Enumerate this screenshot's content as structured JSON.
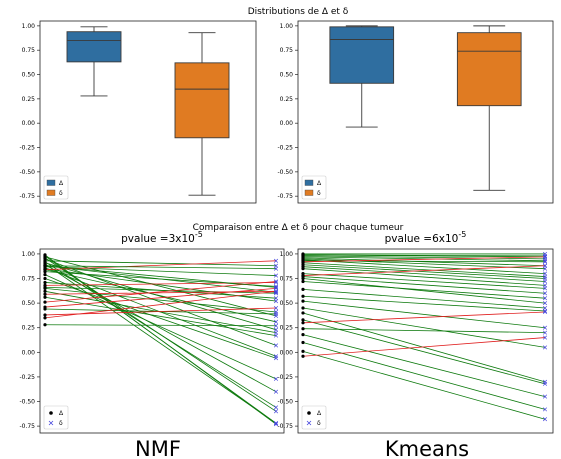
{
  "figure": {
    "suptitle_top": "Distributions de Δ et δ",
    "suptitle_bottom": "Comparaison entre Δ et δ pour chaque tumeur",
    "bottom_left_caption": "NMF",
    "bottom_right_caption": "Kmeans"
  },
  "colors": {
    "delta_box": "#2f6ea0",
    "delta_small_box": "#e07b22",
    "increase_line": "#e02020",
    "decrease_line": "#0e7a0e",
    "delta_marker": "#000000",
    "delta_small_marker": "#4444dd"
  },
  "chart_data": [
    {
      "type": "box",
      "title": "",
      "categories": [
        "Δ",
        "δ"
      ],
      "ylim": [
        -0.82,
        1.05
      ],
      "yticks": [
        "1.00",
        "0.75",
        "0.50",
        "0.25",
        "0.00",
        "-0.25",
        "-0.50",
        "-0.75"
      ],
      "series": [
        {
          "name": "Δ",
          "whisker_low": 0.28,
          "q1": 0.63,
          "median": 0.85,
          "q3": 0.94,
          "whisker_high": 0.99
        },
        {
          "name": "δ",
          "whisker_low": -0.74,
          "q1": -0.15,
          "median": 0.35,
          "q3": 0.62,
          "whisker_high": 0.93
        }
      ],
      "legend": {
        "position": "bottom-left",
        "entries": [
          "Δ",
          "δ"
        ]
      }
    },
    {
      "type": "box",
      "title": "",
      "categories": [
        "Δ",
        "δ"
      ],
      "ylim": [
        -0.82,
        1.05
      ],
      "yticks": [
        "1.00",
        "0.75",
        "0.50",
        "0.25",
        "0.00",
        "-0.25",
        "-0.50",
        "-0.75"
      ],
      "series": [
        {
          "name": "Δ",
          "whisker_low": -0.04,
          "q1": 0.41,
          "median": 0.86,
          "q3": 0.99,
          "whisker_high": 1.0
        },
        {
          "name": "δ",
          "whisker_low": -0.69,
          "q1": 0.18,
          "median": 0.74,
          "q3": 0.93,
          "whisker_high": 1.0
        }
      ],
      "legend": {
        "position": "bottom-left",
        "entries": [
          "Δ",
          "δ"
        ]
      }
    },
    {
      "type": "line",
      "title_prefix": "pvalue =3x10",
      "title_exponent": "-5",
      "ylim": [
        -0.82,
        1.05
      ],
      "yticks": [
        "1.00",
        "0.75",
        "0.50",
        "0.25",
        "0.00",
        "-0.25",
        "-0.50",
        "-0.75"
      ],
      "legend": {
        "position": "bottom-left",
        "entries": [
          "Δ",
          "δ"
        ]
      },
      "pairs": [
        [
          0.99,
          -0.73
        ],
        [
          0.98,
          -0.72
        ],
        [
          0.97,
          0.37
        ],
        [
          0.96,
          -0.6
        ],
        [
          0.95,
          0.07
        ],
        [
          0.93,
          0.88
        ],
        [
          0.92,
          -0.56
        ],
        [
          0.91,
          0.23
        ],
        [
          0.9,
          -0.72
        ],
        [
          0.89,
          -0.4
        ],
        [
          0.88,
          0.61
        ],
        [
          0.87,
          0.78
        ],
        [
          0.86,
          -0.04
        ],
        [
          0.85,
          0.52
        ],
        [
          0.84,
          0.31
        ],
        [
          0.82,
          0.67
        ],
        [
          0.79,
          -0.27
        ],
        [
          0.75,
          -0.06
        ],
        [
          0.71,
          0.55
        ],
        [
          0.68,
          0.71
        ],
        [
          0.66,
          0.6
        ],
        [
          0.65,
          0.41
        ],
        [
          0.62,
          0.2
        ],
        [
          0.59,
          0.62
        ],
        [
          0.56,
          0.17
        ],
        [
          0.51,
          0.72
        ],
        [
          0.46,
          0.65
        ],
        [
          0.44,
          0.39
        ],
        [
          0.38,
          0.45
        ],
        [
          0.35,
          0.62
        ],
        [
          0.28,
          0.27
        ],
        [
          0.84,
          0.93
        ],
        [
          0.88,
          0.66
        ],
        [
          0.88,
          0.85
        ]
      ]
    },
    {
      "type": "line",
      "title_prefix": "pvalue =6x10",
      "title_exponent": "-5",
      "ylim": [
        -0.82,
        1.05
      ],
      "yticks": [
        "1.00",
        "0.75",
        "0.50",
        "0.25",
        "0.00",
        "-0.25",
        "-0.50",
        "-0.75"
      ],
      "legend": {
        "position": "bottom-left",
        "entries": [
          "Δ",
          "δ"
        ]
      },
      "pairs": [
        [
          1.0,
          1.0
        ],
        [
          0.99,
          0.98
        ],
        [
          0.99,
          0.97
        ],
        [
          0.98,
          0.95
        ],
        [
          0.97,
          0.93
        ],
        [
          0.96,
          0.88
        ],
        [
          0.95,
          0.85
        ],
        [
          0.94,
          0.8
        ],
        [
          0.93,
          0.92
        ],
        [
          0.91,
          0.77
        ],
        [
          0.89,
          0.75
        ],
        [
          0.87,
          0.72
        ],
        [
          0.85,
          0.68
        ],
        [
          0.8,
          0.65
        ],
        [
          0.77,
          0.6
        ],
        [
          0.75,
          0.5
        ],
        [
          0.72,
          0.55
        ],
        [
          0.64,
          0.45
        ],
        [
          0.57,
          0.42
        ],
        [
          0.52,
          0.25
        ],
        [
          0.45,
          0.05
        ],
        [
          0.4,
          -0.3
        ],
        [
          0.33,
          -0.32
        ],
        [
          0.24,
          0.2
        ],
        [
          0.18,
          -0.45
        ],
        [
          0.1,
          -0.58
        ],
        [
          0.01,
          -0.68
        ],
        [
          -0.04,
          0.15
        ],
        [
          0.3,
          0.41
        ],
        [
          0.92,
          0.97
        ],
        [
          0.78,
          0.88
        ]
      ]
    }
  ]
}
